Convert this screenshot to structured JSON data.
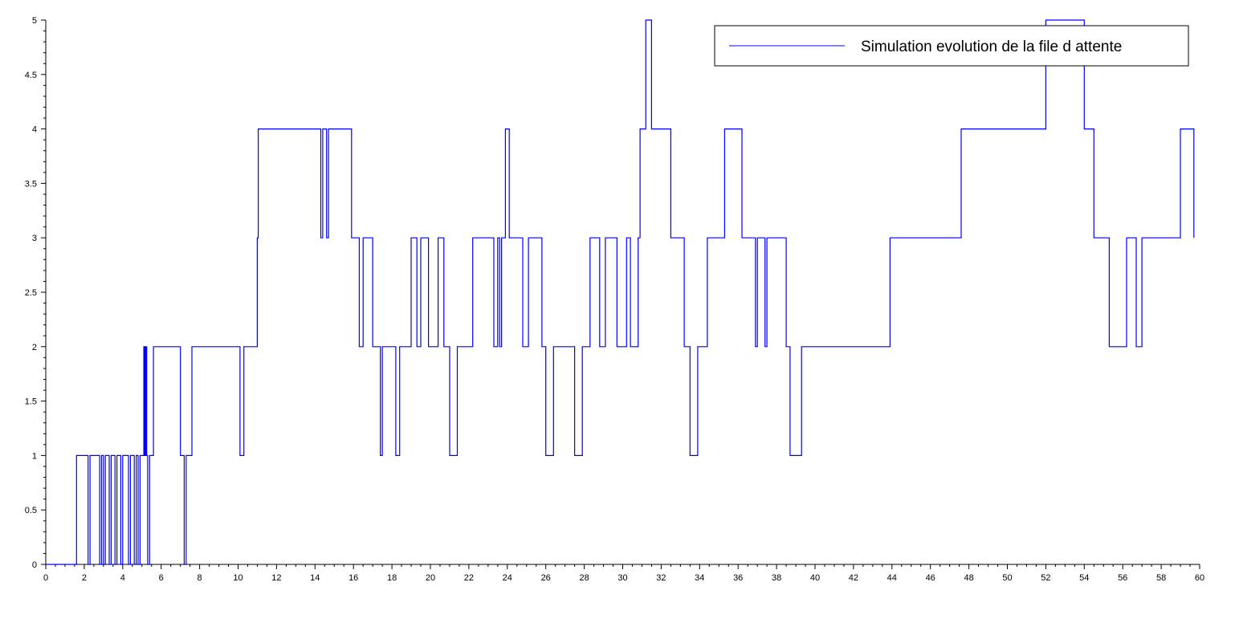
{
  "chart_data": {
    "type": "line",
    "step": true,
    "title": "",
    "xlabel": "",
    "ylabel": "",
    "xlim": [
      0,
      60
    ],
    "ylim": [
      0,
      5
    ],
    "x_ticks": [
      "0",
      "2",
      "4",
      "6",
      "8",
      "10",
      "12",
      "14",
      "16",
      "18",
      "20",
      "22",
      "24",
      "26",
      "28",
      "30",
      "32",
      "34",
      "36",
      "38",
      "40",
      "42",
      "44",
      "46",
      "48",
      "50",
      "52",
      "54",
      "56",
      "58",
      "60"
    ],
    "y_ticks": [
      "0",
      "0.5",
      "1",
      "1.5",
      "2",
      "2.5",
      "3",
      "3.5",
      "4",
      "4.5",
      "5"
    ],
    "grid": false,
    "legend_position": "top-right",
    "series": [
      {
        "name": "Simulation evolution de la file d attente",
        "color": "#0000ff",
        "points": [
          [
            0,
            0
          ],
          [
            1.6,
            1
          ],
          [
            2.2,
            0
          ],
          [
            2.3,
            1
          ],
          [
            2.8,
            0
          ],
          [
            2.9,
            1
          ],
          [
            3.0,
            0
          ],
          [
            3.1,
            1
          ],
          [
            3.3,
            0
          ],
          [
            3.4,
            1
          ],
          [
            3.6,
            0
          ],
          [
            3.7,
            1
          ],
          [
            3.9,
            0
          ],
          [
            4.0,
            1
          ],
          [
            4.3,
            0
          ],
          [
            4.4,
            1
          ],
          [
            4.6,
            0
          ],
          [
            4.7,
            1
          ],
          [
            4.8,
            0
          ],
          [
            4.9,
            1
          ],
          [
            5.1,
            2
          ],
          [
            5.15,
            1
          ],
          [
            5.2,
            2
          ],
          [
            5.25,
            1
          ],
          [
            5.3,
            0
          ],
          [
            5.4,
            1
          ],
          [
            5.6,
            2
          ],
          [
            6.3,
            2
          ],
          [
            7.0,
            1
          ],
          [
            7.2,
            0
          ],
          [
            7.3,
            1
          ],
          [
            7.6,
            2
          ],
          [
            10.1,
            1
          ],
          [
            10.3,
            2
          ],
          [
            10.9,
            2
          ],
          [
            11.0,
            3
          ],
          [
            11.05,
            4
          ],
          [
            14.3,
            3
          ],
          [
            14.4,
            4
          ],
          [
            14.6,
            3
          ],
          [
            14.7,
            4
          ],
          [
            15.9,
            3
          ],
          [
            16.3,
            2
          ],
          [
            16.5,
            3
          ],
          [
            17.0,
            2
          ],
          [
            17.4,
            1
          ],
          [
            17.5,
            2
          ],
          [
            18.2,
            1
          ],
          [
            18.4,
            2
          ],
          [
            19.0,
            3
          ],
          [
            19.3,
            2
          ],
          [
            19.5,
            3
          ],
          [
            19.9,
            2
          ],
          [
            20.4,
            3
          ],
          [
            20.7,
            2
          ],
          [
            21.0,
            1
          ],
          [
            21.4,
            2
          ],
          [
            22.2,
            3
          ],
          [
            23.3,
            2
          ],
          [
            23.5,
            3
          ],
          [
            23.6,
            2
          ],
          [
            23.7,
            3
          ],
          [
            23.9,
            4
          ],
          [
            24.1,
            3
          ],
          [
            24.8,
            2
          ],
          [
            25.1,
            3
          ],
          [
            25.8,
            2
          ],
          [
            26.0,
            1
          ],
          [
            26.4,
            2
          ],
          [
            27.0,
            2
          ],
          [
            27.5,
            1
          ],
          [
            27.9,
            2
          ],
          [
            28.3,
            3
          ],
          [
            28.8,
            2
          ],
          [
            29.1,
            3
          ],
          [
            29.7,
            2
          ],
          [
            30.2,
            3
          ],
          [
            30.4,
            2
          ],
          [
            30.8,
            3
          ],
          [
            30.9,
            4
          ],
          [
            31.2,
            5
          ],
          [
            31.5,
            4
          ],
          [
            31.6,
            4
          ],
          [
            32.5,
            3
          ],
          [
            33.2,
            2
          ],
          [
            33.5,
            1
          ],
          [
            33.9,
            2
          ],
          [
            34.4,
            3
          ],
          [
            35.2,
            3
          ],
          [
            35.3,
            4
          ],
          [
            36.2,
            3
          ],
          [
            36.9,
            2
          ],
          [
            37.0,
            3
          ],
          [
            37.4,
            2
          ],
          [
            37.5,
            3
          ],
          [
            38.5,
            2
          ],
          [
            38.7,
            1
          ],
          [
            39.3,
            2
          ],
          [
            43.9,
            3
          ],
          [
            47.6,
            4
          ],
          [
            52.0,
            5
          ],
          [
            54.0,
            4
          ],
          [
            54.5,
            3
          ],
          [
            55.3,
            2
          ],
          [
            56.2,
            3
          ],
          [
            56.7,
            2
          ],
          [
            57.0,
            3
          ],
          [
            59.0,
            4
          ],
          [
            59.7,
            3
          ]
        ]
      }
    ]
  }
}
